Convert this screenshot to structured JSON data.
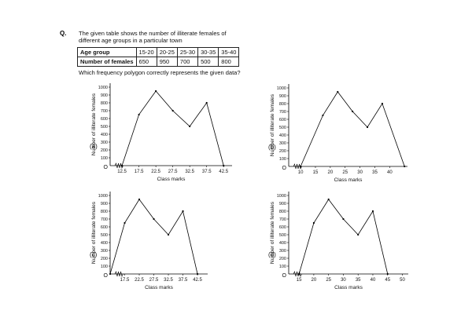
{
  "question": {
    "number": "Q.",
    "text": "The given table shows the number of illiterate females of different age groups in a particular town",
    "prompt": "Which frequency polygon correctly represents the given data?"
  },
  "table": {
    "rows": [
      [
        "Age group",
        "15-20",
        "20-25",
        "25-30",
        "30-35",
        "35-40"
      ],
      [
        "Number of females",
        "650",
        "950",
        "700",
        "500",
        "800"
      ]
    ]
  },
  "chart_data": [
    {
      "type": "line",
      "label": "(a)",
      "origin_label": "O",
      "xlabel": "Class marks",
      "ylabel": "Number of illiterate females",
      "x": [
        12.5,
        17.5,
        22.5,
        27.5,
        32.5,
        37.5,
        42.5
      ],
      "values": [
        0,
        650,
        950,
        700,
        500,
        800,
        0
      ],
      "color": "#000000",
      "xlim": [
        9,
        45
      ],
      "xticks": [
        12.5,
        17.5,
        22.5,
        27.5,
        32.5,
        37.5,
        42.5
      ],
      "ylim": [
        0,
        1050
      ],
      "yticks": [
        100,
        200,
        300,
        400,
        500,
        600,
        700,
        800,
        900,
        1000
      ]
    },
    {
      "type": "line",
      "label": "(b)",
      "origin_label": "O",
      "xlabel": "Class marks",
      "ylabel": "Number of illiterate females",
      "x": [
        10,
        17.5,
        22.5,
        27.5,
        32.5,
        37.5,
        45
      ],
      "values": [
        0,
        650,
        950,
        700,
        500,
        800,
        0
      ],
      "color": "#000000",
      "xlim": [
        6,
        46
      ],
      "xticks": [
        10,
        15,
        20,
        25,
        30,
        35,
        40
      ],
      "ylim": [
        0,
        1050
      ],
      "yticks": [
        100,
        200,
        300,
        400,
        500,
        600,
        700,
        800,
        900,
        1000
      ]
    },
    {
      "type": "line",
      "label": "(c)",
      "origin_label": "O",
      "xlabel": "Class marks",
      "ylabel": "Number of illiterate females",
      "x": [
        12.5,
        17.5,
        22.5,
        27.5,
        32.5,
        37.5,
        42.5
      ],
      "values": [
        0,
        650,
        950,
        700,
        500,
        800,
        0
      ],
      "color": "#000000",
      "xlim": [
        12.5,
        46
      ],
      "xticks": [
        17.5,
        22.5,
        27.5,
        32.5,
        37.5,
        42.5
      ],
      "ylim": [
        0,
        1050
      ],
      "yticks": [
        100,
        200,
        300,
        400,
        500,
        600,
        700,
        800,
        900,
        1000
      ]
    },
    {
      "type": "line",
      "label": "(d)",
      "origin_label": "O",
      "xlabel": "Class marks",
      "ylabel": "Number of illiterate females",
      "x": [
        15,
        20,
        25,
        30,
        35,
        40,
        45
      ],
      "values": [
        0,
        650,
        950,
        700,
        500,
        800,
        0
      ],
      "color": "#000000",
      "xlim": [
        11.5,
        52
      ],
      "xticks": [
        15,
        20,
        25,
        30,
        35,
        40,
        45,
        50
      ],
      "ylim": [
        0,
        1050
      ],
      "yticks": [
        100,
        200,
        300,
        400,
        500,
        600,
        700,
        800,
        900,
        1000
      ]
    }
  ]
}
